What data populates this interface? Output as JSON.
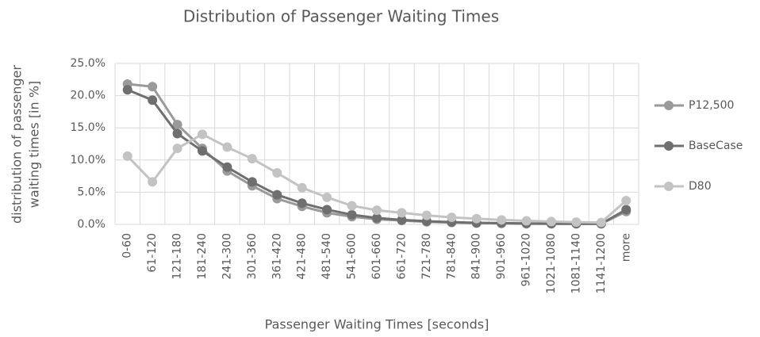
{
  "chart_data": {
    "type": "line",
    "title": "Distribution of Passenger Waiting Times",
    "x_label": "Passenger Waiting Times [seconds]",
    "y_label": [
      "distribution of passenger",
      "waiting times [in %]"
    ],
    "categories": [
      "0-60",
      "61-120",
      "121-180",
      "181-240",
      "241-300",
      "301-360",
      "361-420",
      "421-480",
      "481-540",
      "541-600",
      "601-660",
      "661-720",
      "721-780",
      "781-840",
      "841-900",
      "901-960",
      "961-1020",
      "1021-1080",
      "1081-1140",
      "1141-1200",
      "more"
    ],
    "series": [
      {
        "name": "P12,500",
        "color": "#9a9a9a",
        "values": [
          21.8,
          21.4,
          15.5,
          11.8,
          8.3,
          6.0,
          4.0,
          2.8,
          1.8,
          1.2,
          0.8,
          0.6,
          0.4,
          0.3,
          0.2,
          0.15,
          0.1,
          0.1,
          0.1,
          0.1,
          2.0
        ]
      },
      {
        "name": "BaseCase",
        "color": "#6f6f6f",
        "values": [
          20.9,
          19.3,
          14.1,
          11.4,
          8.9,
          6.6,
          4.6,
          3.3,
          2.3,
          1.5,
          1.0,
          0.7,
          0.5,
          0.35,
          0.25,
          0.2,
          0.15,
          0.1,
          0.1,
          0.1,
          2.3
        ]
      },
      {
        "name": "D80",
        "color": "#c3c3c3",
        "values": [
          10.6,
          6.6,
          11.8,
          14.0,
          12.0,
          10.2,
          8.0,
          5.7,
          4.2,
          2.9,
          2.2,
          1.8,
          1.4,
          1.1,
          0.9,
          0.7,
          0.55,
          0.45,
          0.35,
          0.3,
          3.7
        ]
      }
    ],
    "ylim": [
      0,
      25
    ],
    "yticks": [
      {
        "value": 0,
        "label": "0.0%"
      },
      {
        "value": 5,
        "label": "5.0%"
      },
      {
        "value": 10,
        "label": "10.0%"
      },
      {
        "value": 15,
        "label": "15.0%"
      },
      {
        "value": 20,
        "label": "20.0%"
      },
      {
        "value": 25,
        "label": "25.0%"
      }
    ],
    "grid": true,
    "legend": "right"
  }
}
